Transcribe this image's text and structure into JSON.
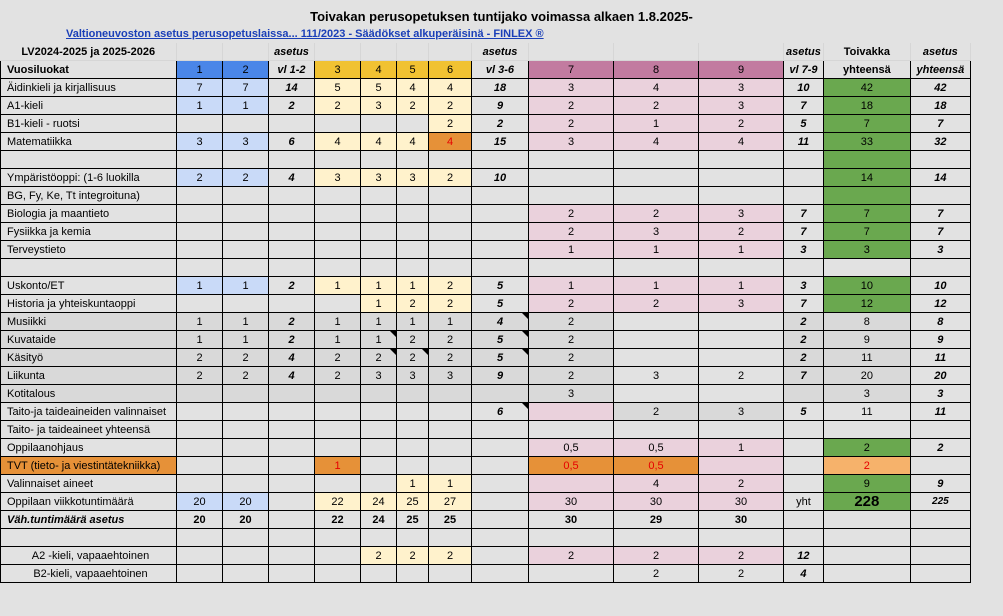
{
  "title": "Toivakan perusopetuksen tuntijako voimassa alkaen 1.8.2025-",
  "link_text": "Valtioneuvoston asetus perusopetuslaissa... 111/2023 - Säädökset alkuperäisinä - FINLEX ®",
  "header1": {
    "period": "LV2024-2025 ja 2025-2026",
    "asetus1": "asetus",
    "asetus2": "asetus",
    "asetus3": "asetus",
    "toivakka": "Toivakka",
    "asetus4": "asetus"
  },
  "header2": {
    "label": "Vuosiluokat",
    "g1": "1",
    "g2": "2",
    "vl12": "vl 1-2",
    "g3": "3",
    "g4": "4",
    "g5": "5",
    "g6": "6",
    "vl36": "vl 3-6",
    "g7": "7",
    "g8": "8",
    "g9": "9",
    "vl79": "vl 7-9",
    "yht": "yhteensä",
    "yht2": "yhteensä"
  },
  "rows": [
    {
      "label": "Äidinkieli ja kirjallisuus",
      "v": [
        "7",
        "7",
        "14",
        "5",
        "5",
        "4",
        "4",
        "18",
        "3",
        "4",
        "3",
        "10",
        "42",
        "42"
      ]
    },
    {
      "label": "A1-kieli",
      "v": [
        "1",
        "1",
        "2",
        "2",
        "3",
        "2",
        "2",
        "9",
        "2",
        "2",
        "3",
        "7",
        "18",
        "18"
      ]
    },
    {
      "label": "B1-kieli - ruotsi",
      "v": [
        "",
        "",
        "",
        "",
        "",
        "",
        "2",
        "2",
        "2",
        "1",
        "2",
        "5",
        "7",
        "7"
      ]
    },
    {
      "label": "Matematiikka",
      "v": [
        "3",
        "3",
        "6",
        "4",
        "4",
        "4",
        "4",
        "15",
        "3",
        "4",
        "4",
        "11",
        "33",
        "32"
      ]
    },
    {
      "label": "",
      "v": [
        "",
        "",
        "",
        "",
        "",
        "",
        "",
        "",
        "",
        "",
        "",
        "",
        "",
        ""
      ]
    },
    {
      "label": "Ympäristöoppi: (1-6 luokilla",
      "v": [
        "2",
        "2",
        "4",
        "3",
        "3",
        "3",
        "2",
        "10",
        "",
        "",
        "",
        "",
        "14",
        "14"
      ]
    },
    {
      "label": "BG, Fy, Ke, Tt integroituna)",
      "v": [
        "",
        "",
        "",
        "",
        "",
        "",
        "",
        "",
        "",
        "",
        "",
        "",
        "",
        ""
      ]
    },
    {
      "label": "Biologia ja maantieto",
      "v": [
        "",
        "",
        "",
        "",
        "",
        "",
        "",
        "",
        "2",
        "2",
        "3",
        "7",
        "7",
        "7"
      ]
    },
    {
      "label": "Fysiikka ja kemia",
      "v": [
        "",
        "",
        "",
        "",
        "",
        "",
        "",
        "",
        "2",
        "3",
        "2",
        "7",
        "7",
        "7"
      ]
    },
    {
      "label": "Terveystieto",
      "v": [
        "",
        "",
        "",
        "",
        "",
        "",
        "",
        "",
        "1",
        "1",
        "1",
        "3",
        "3",
        "3"
      ]
    },
    {
      "label": "",
      "v": [
        "",
        "",
        "",
        "",
        "",
        "",
        "",
        "",
        "",
        "",
        "",
        "",
        "",
        ""
      ]
    },
    {
      "label": "Uskonto/ET",
      "v": [
        "1",
        "1",
        "2",
        "1",
        "1",
        "1",
        "2",
        "5",
        "1",
        "1",
        "1",
        "3",
        "10",
        "10"
      ]
    },
    {
      "label": "Historia ja yhteiskuntaoppi",
      "v": [
        "",
        "",
        "",
        "",
        "1",
        "2",
        "2",
        "5",
        "2",
        "2",
        "3",
        "7",
        "12",
        "12"
      ]
    },
    {
      "label": "Musiikki",
      "v": [
        "1",
        "1",
        "2",
        "1",
        "1",
        "1",
        "1",
        "4",
        "2",
        "",
        "",
        "2",
        "8",
        "8"
      ]
    },
    {
      "label": "Kuvataide",
      "v": [
        "1",
        "1",
        "2",
        "1",
        "1",
        "2",
        "2",
        "5",
        "2",
        "",
        "",
        "2",
        "9",
        "9"
      ]
    },
    {
      "label": "Käsityö",
      "v": [
        "2",
        "2",
        "4",
        "2",
        "2",
        "2",
        "2",
        "5",
        "2",
        "",
        "",
        "2",
        "11",
        "11"
      ]
    },
    {
      "label": "Liikunta",
      "v": [
        "2",
        "2",
        "4",
        "2",
        "3",
        "3",
        "3",
        "9",
        "2",
        "3",
        "2",
        "7",
        "20",
        "20"
      ]
    },
    {
      "label": "Kotitalous",
      "v": [
        "",
        "",
        "",
        "",
        "",
        "",
        "",
        "",
        "3",
        "",
        "",
        "",
        "3",
        "3"
      ]
    },
    {
      "label": "Taito-ja taideaineiden valinnaiset",
      "v": [
        "",
        "",
        "",
        "",
        "",
        "",
        "",
        "6",
        "",
        "2",
        "3",
        "5",
        "11",
        "11"
      ]
    },
    {
      "label": "Taito- ja taideaineet yhteensä",
      "v": [
        "",
        "",
        "",
        "",
        "",
        "",
        "",
        "",
        "",
        "",
        "",
        "",
        "",
        ""
      ]
    },
    {
      "label": "Oppilaanohjaus",
      "v": [
        "",
        "",
        "",
        "",
        "",
        "",
        "",
        "",
        "0,5",
        "0,5",
        "1",
        "",
        "2",
        "2"
      ]
    },
    {
      "label": "TVT (tieto- ja viestintätekniikka)",
      "v": [
        "",
        "",
        "",
        "1",
        "",
        "",
        "",
        "",
        "0,5",
        "0,5",
        "",
        "",
        "2",
        ""
      ]
    },
    {
      "label": "Valinnaiset aineet",
      "v": [
        "",
        "",
        "",
        "",
        "",
        "1",
        "1",
        "",
        "",
        "4",
        "2",
        "",
        "9",
        "9"
      ]
    },
    {
      "label": "Oppilaan viikkotuntimäärä",
      "v": [
        "20",
        "20",
        "",
        "22",
        "24",
        "25",
        "27",
        "",
        "30",
        "30",
        "30",
        "yht",
        "228",
        "225"
      ]
    },
    {
      "label": "Väh.tuntimäärä asetus",
      "v": [
        "20",
        "20",
        "",
        "22",
        "24",
        "25",
        "25",
        "",
        "30",
        "29",
        "30",
        "",
        "",
        ""
      ]
    },
    {
      "label": "",
      "v": [
        "",
        "",
        "",
        "",
        "",
        "",
        "",
        "",
        "",
        "",
        "",
        "",
        "",
        ""
      ]
    },
    {
      "label": "A2 -kieli, vapaaehtoinen",
      "v": [
        "",
        "",
        "",
        "",
        "2",
        "2",
        "2",
        "",
        "2",
        "2",
        "2",
        "12",
        "",
        ""
      ]
    },
    {
      "label": "B2-kieli, vapaaehtoinen",
      "v": [
        "",
        "",
        "",
        "",
        "",
        "",
        "",
        "",
        "",
        "2",
        "2",
        "4",
        "",
        ""
      ]
    }
  ]
}
